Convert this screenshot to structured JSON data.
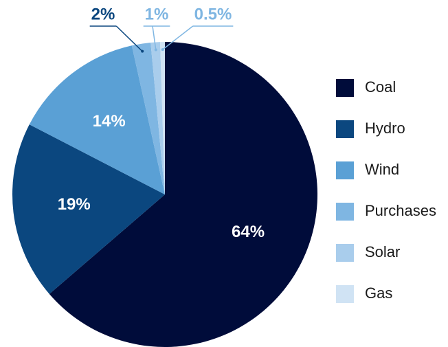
{
  "chart_data": {
    "type": "pie",
    "categories": [
      "Coal",
      "Hydro",
      "Wind",
      "Purchases",
      "Solar",
      "Gas"
    ],
    "values": [
      64,
      19,
      14,
      2,
      1,
      0.5
    ],
    "value_labels": [
      "64%",
      "19%",
      "14%",
      "2%",
      "1%",
      "0.5%"
    ],
    "colors": [
      "#000c3a",
      "#0b477f",
      "#5aa0d5",
      "#7fb6e2",
      "#a9cdec",
      "#d0e3f4"
    ],
    "legend": "right"
  }
}
